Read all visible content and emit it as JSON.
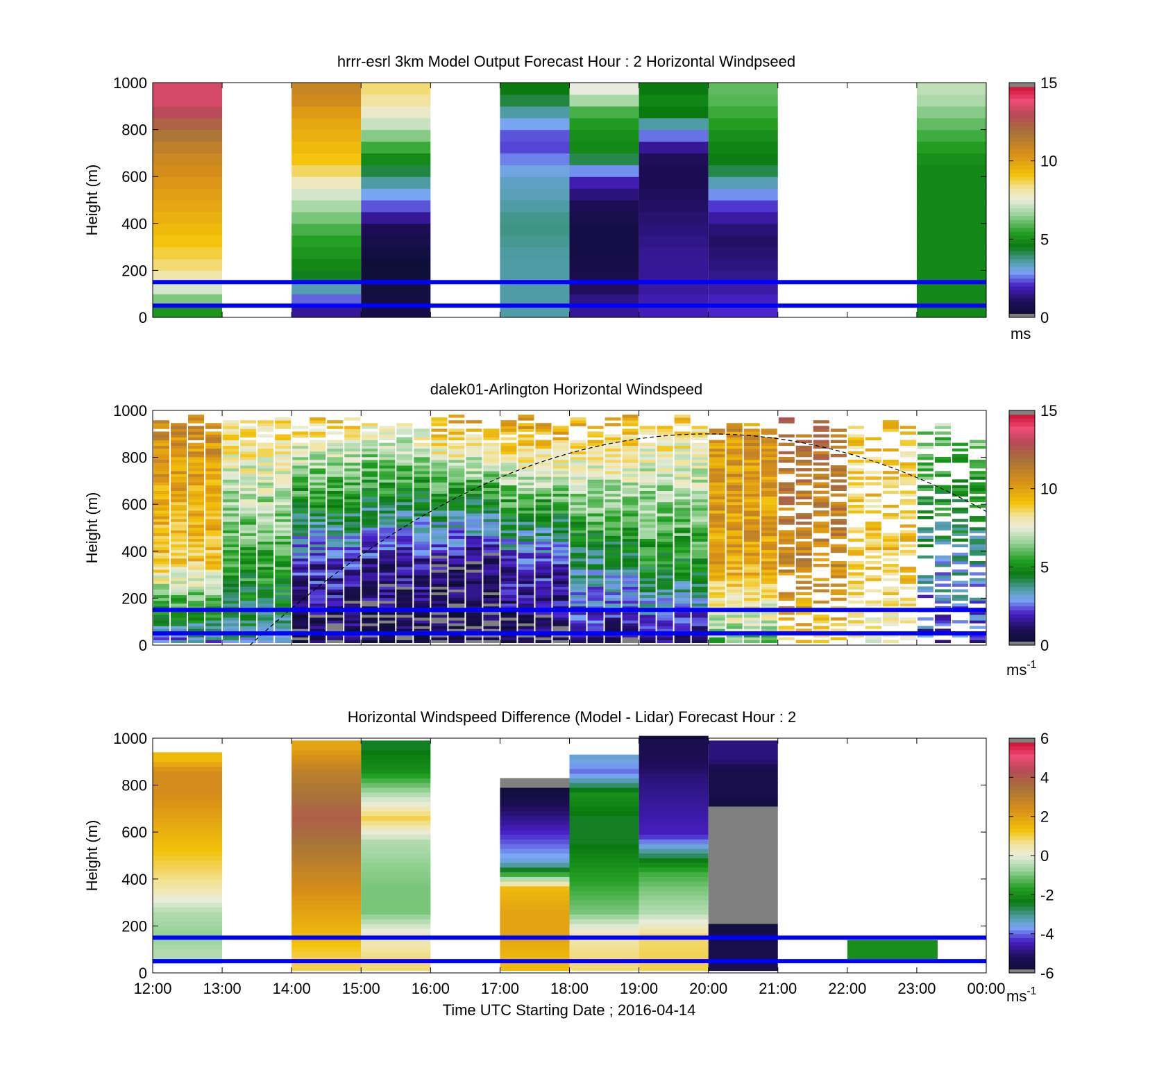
{
  "figure": {
    "xlabel": "Time UTC  Starting Date ; 2016-04-14",
    "x_tick_labels": [
      "12:00",
      "13:00",
      "14:00",
      "15:00",
      "16:00",
      "17:00",
      "18:00",
      "19:00",
      "20:00",
      "21:00",
      "22:00",
      "23:00",
      "00:00"
    ],
    "ylabel": "Height (m)",
    "y_tick_labels": [
      "0",
      "200",
      "400",
      "600",
      "800",
      "1000"
    ],
    "reference_lines_m": [
      50,
      150
    ],
    "reference_line_color": "#0000ff"
  },
  "panels": [
    {
      "title": "hrrr-esrl 3km Model Output   Forecast Hour : 2 Horizontal Windpseed",
      "colorbar": {
        "ticks": [
          "0",
          "5",
          "10",
          "15"
        ],
        "unit": "ms",
        "unit_sup": ""
      }
    },
    {
      "title": "dalek01-Arlington  Horizontal Windspeed",
      "colorbar": {
        "ticks": [
          "0",
          "5",
          "10",
          "15"
        ],
        "unit": "ms",
        "unit_sup": "-1"
      }
    },
    {
      "title": "Horizontal Windspeed Difference (Model - Lidar) Forecast Hour : 2",
      "colorbar": {
        "ticks": [
          "-6",
          "-4",
          "-2",
          "0",
          "2",
          "4",
          "6"
        ],
        "unit": "ms",
        "unit_sup": "-1"
      }
    }
  ],
  "chart_data": [
    {
      "type": "heatmap",
      "title": "hrrr-esrl 3km Model Output   Forecast Hour : 2 Horizontal Windpseed",
      "ylabel": "Height (m)",
      "ylim": [
        0,
        1000
      ],
      "xlim": [
        "12:00",
        "00:00"
      ],
      "clim": [
        0,
        15
      ],
      "unit": "ms",
      "hourly_columns_ms_by_height": [
        {
          "hour": "12:00",
          "bins_m": [
            20,
            60,
            110,
            160,
            220,
            300,
            400,
            500,
            600,
            700,
            800,
            900,
            970
          ],
          "speed_ms": [
            5,
            6,
            7,
            8,
            8.5,
            9,
            9.5,
            10,
            10.5,
            11,
            12,
            13.5,
            13.5
          ]
        },
        {
          "hour": "13:00",
          "bins_m": [],
          "speed_ms": []
        },
        {
          "hour": "14:00",
          "bins_m": [
            30,
            80,
            130,
            180,
            250,
            350,
            450,
            550,
            650,
            750,
            850,
            950
          ],
          "speed_ms": [
            1.5,
            2.5,
            3.5,
            4.5,
            5,
            5.5,
            6.5,
            7.5,
            9,
            9.5,
            10,
            11
          ]
        },
        {
          "hour": "15:00",
          "bins_m": [
            50,
            150,
            200,
            300,
            400,
            450,
            550,
            650,
            750,
            850,
            950
          ],
          "speed_ms": [
            0.5,
            0.3,
            0,
            0.5,
            1,
            2,
            3.2,
            4.5,
            6,
            7.5,
            8.5
          ]
        },
        {
          "hour": "16:00",
          "bins_m": [],
          "speed_ms": []
        },
        {
          "hour": "17:00",
          "bins_m": [
            50,
            150,
            250,
            400,
            500,
            600,
            750,
            850,
            950
          ],
          "speed_ms": [
            3.5,
            3.5,
            3.5,
            3.8,
            3.4,
            3.2,
            2,
            3.2,
            4.5
          ]
        },
        {
          "hour": "18:00",
          "bins_m": [
            50,
            150,
            250,
            400,
            500,
            600,
            700,
            800,
            900,
            950
          ],
          "speed_ms": [
            1.5,
            0.8,
            0.5,
            0.5,
            1,
            2,
            4.8,
            5,
            6,
            7.5
          ]
        },
        {
          "hour": "19:00",
          "bins_m": [
            50,
            150,
            250,
            400,
            500,
            600,
            700,
            800,
            900,
            950
          ],
          "speed_ms": [
            1.8,
            1.5,
            1.5,
            1.2,
            1,
            0.8,
            1,
            3,
            5,
            4.5
          ]
        },
        {
          "hour": "20:00",
          "bins_m": [
            50,
            150,
            250,
            350,
            450,
            550,
            650,
            750,
            850,
            950
          ],
          "speed_ms": [
            2,
            1.5,
            1.2,
            1,
            1.8,
            3,
            4.5,
            4.8,
            5.5,
            6
          ]
        },
        {
          "hour": "21:00",
          "bins_m": [],
          "speed_ms": []
        },
        {
          "hour": "22:00",
          "bins_m": [],
          "speed_ms": []
        },
        {
          "hour": "23:00",
          "bins_m": [
            50,
            150,
            250,
            350,
            450,
            550,
            650,
            750,
            850,
            950
          ],
          "speed_ms": [
            4.8,
            4.8,
            4.8,
            4.8,
            4.8,
            4.8,
            4.8,
            5.5,
            6.2,
            7
          ]
        }
      ]
    },
    {
      "type": "heatmap",
      "title": "dalek01-Arlington  Horizontal Windspeed",
      "ylabel": "Height (m)",
      "ylim": [
        0,
        1000
      ],
      "xlim": [
        "12:00",
        "00:00"
      ],
      "clim": [
        0,
        15
      ],
      "unit": "ms-1",
      "approx_profiles_ms": [
        {
          "time": "12:00-13:00",
          "low_m": 2.5,
          "mid_m": 9,
          "top_m": 11
        },
        {
          "time": "13:00-14:00",
          "low_m": 3.5,
          "mid_m": 5.5,
          "top_m": 9
        },
        {
          "time": "14:00-15:00",
          "low_m": 0.5,
          "mid_m": 2,
          "top_m": 9.5
        },
        {
          "time": "15:00-16:00",
          "low_m": 0.3,
          "mid_m": 1.5,
          "top_m": 9
        },
        {
          "time": "16:00-17:00",
          "low_m": 0.3,
          "mid_m": 1,
          "top_m": 10.5
        },
        {
          "time": "17:00-18:00",
          "low_m": 0.5,
          "mid_m": 2,
          "top_m": 11
        },
        {
          "time": "18:00-19:00",
          "low_m": 1,
          "mid_m": 4,
          "top_m": 10
        },
        {
          "time": "19:00-20:00",
          "low_m": 1.2,
          "mid_m": 5,
          "top_m": 9
        },
        {
          "time": "20:00-21:00",
          "low_m": 6,
          "mid_m": 10,
          "top_m": 10.5
        },
        {
          "time": "21:00-22:00",
          "low_m": 9,
          "mid_m": 11,
          "top_m": 12
        },
        {
          "time": "22:00-23:00",
          "low_m": 8,
          "mid_m": 9,
          "top_m": 9
        },
        {
          "time": "23:00-00:00",
          "low_m": 2,
          "mid_m": 3.5,
          "top_m": 7
        }
      ]
    },
    {
      "type": "heatmap",
      "title": "Horizontal Windspeed Difference (Model - Lidar) Forecast Hour : 2",
      "ylabel": "Height (m)",
      "xlabel": "Time UTC  Starting Date ; 2016-04-14",
      "ylim": [
        0,
        1000
      ],
      "xlim": [
        "12:00",
        "00:00"
      ],
      "clim": [
        -6,
        6
      ],
      "unit": "ms-1",
      "hourly_columns_ms_by_height": [
        {
          "hour": "12:00",
          "bins_m": [
            80,
            150,
            250,
            350,
            450,
            550,
            650,
            750,
            850,
            900
          ],
          "diff_ms": [
            -0.5,
            -0.8,
            -0.5,
            0.5,
            1,
            1.5,
            2,
            2.5,
            2.5,
            1.5
          ]
        },
        {
          "hour": "13:00",
          "bins_m": [],
          "diff_ms": []
        },
        {
          "hour": "14:00",
          "bins_m": [
            50,
            150,
            250,
            350,
            450,
            550,
            650,
            750,
            850,
            950
          ],
          "diff_ms": [
            1,
            1.5,
            2,
            2.5,
            3,
            3.5,
            4,
            3.5,
            3,
            2
          ]
        },
        {
          "hour": "15:00",
          "bins_m": [
            50,
            150,
            250,
            350,
            450,
            550,
            650,
            850,
            950
          ],
          "diff_ms": [
            0.8,
            0.3,
            -1,
            -1,
            -0.8,
            -0.5,
            1,
            -2,
            -2.5
          ]
        },
        {
          "hour": "16:00",
          "bins_m": [],
          "diff_ms": []
        },
        {
          "hour": "17:00",
          "bins_m": [
            50,
            150,
            250,
            350,
            430,
            460,
            800
          ],
          "diff_ms": [
            1.5,
            2,
            2,
            1.5,
            -2.5,
            -3.5,
            -6
          ]
        },
        {
          "hour": "18:00",
          "bins_m": [
            50,
            150,
            250,
            350,
            450,
            550,
            650,
            750,
            820,
            850,
            900
          ],
          "diff_ms": [
            0.8,
            0.5,
            -1,
            -1.5,
            -2,
            -2.5,
            -2.5,
            -2,
            -3.5,
            -4,
            -3.5
          ]
        },
        {
          "hour": "19:00",
          "bins_m": [
            50,
            150,
            250,
            350,
            420,
            580,
            820,
            860,
            990
          ],
          "diff_ms": [
            1,
            0.8,
            -0.5,
            -1,
            -1.5,
            -4.5,
            -5,
            -5.2,
            -5.5
          ]
        },
        {
          "hour": "20:00",
          "bins_m": [
            50,
            150,
            250,
            400,
            550,
            650,
            750,
            850,
            900,
            950
          ],
          "diff_ms": [
            -5.5,
            -5.5,
            -6,
            -6,
            -6,
            -6,
            -5.5,
            -5.5,
            -5,
            -5
          ]
        },
        {
          "hour": "21:00",
          "bins_m": [],
          "diff_ms": []
        },
        {
          "hour": "22:00",
          "bins_m": [
            100
          ],
          "diff_ms": [
            -2
          ]
        },
        {
          "hour": "23:00",
          "bins_m": [],
          "diff_ms": []
        }
      ]
    }
  ]
}
